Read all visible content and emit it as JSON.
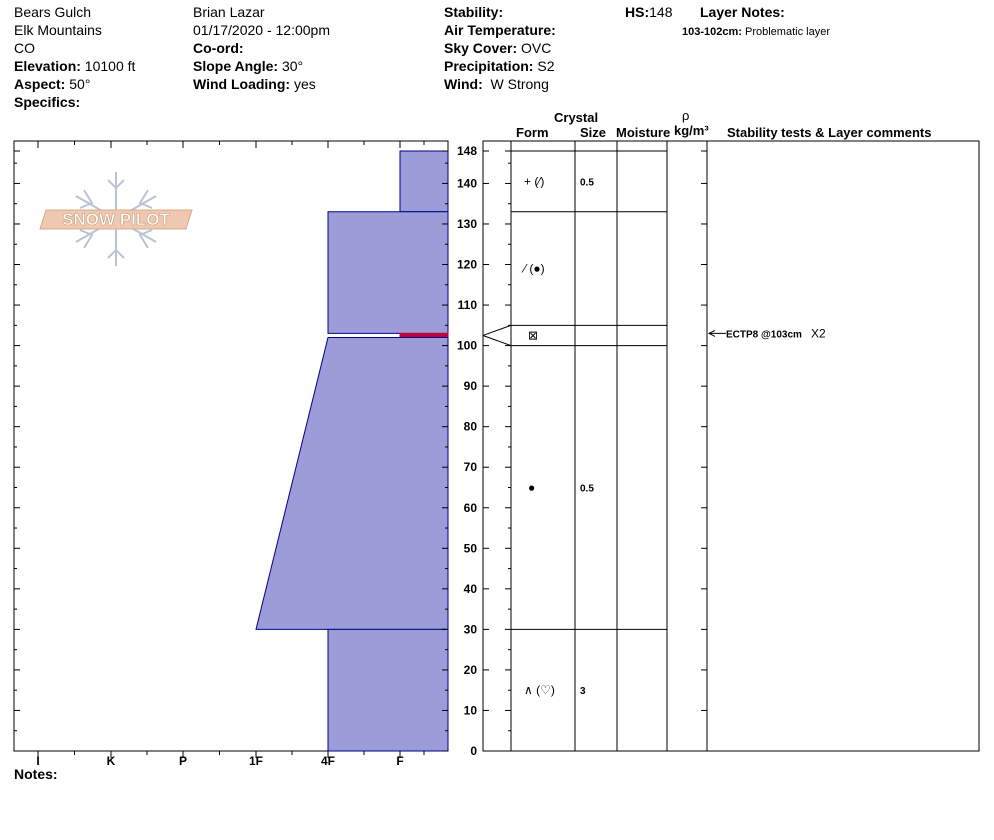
{
  "header": {
    "location": "Bears Gulch",
    "range": "Elk Mountains",
    "state": "CO",
    "elevation_label": "Elevation:",
    "elevation_value": "10100 ft",
    "aspect_label": "Aspect:",
    "aspect_value": "50°",
    "specifics_label": "Specifics:",
    "observer": "Brian Lazar",
    "datetime": "01/17/2020 - 12:00pm",
    "coord_label": "Co-ord:",
    "slope_label": "Slope Angle:",
    "slope_value": "30°",
    "wind_loading_label": "Wind Loading:",
    "wind_loading_value": "yes",
    "stability_label": "Stability:",
    "air_temp_label": "Air Temperature:",
    "sky_label": "Sky Cover:",
    "sky_value": "OVC",
    "precip_label": "Precipitation:",
    "precip_value": "S2",
    "wind_label": "Wind:",
    "wind_value": "W Strong",
    "hs_label": "HS:",
    "hs_value": "148",
    "layer_notes_label": "Layer Notes:",
    "layer_note_range": "103-102cm:",
    "layer_note_text": "Problematic layer"
  },
  "logo": {
    "text": "SNOW PILOT"
  },
  "columns": {
    "crystal": "Crystal",
    "form": "Form",
    "size": "Size",
    "moisture": "Moisture",
    "rho": "ρ",
    "density_unit": "kg/m³",
    "comments": "Stability tests & Layer comments"
  },
  "notes_label": "Notes:",
  "stability_test": {
    "label": "ECTP8 @103cm",
    "multiplier": "X2",
    "depth": 103
  },
  "colors": {
    "layer_fill": "#9c9cd8",
    "layer_stroke": "#00008b",
    "weak_layer": "#c0003c"
  },
  "chart_data": {
    "type": "area",
    "ylim": [
      0,
      148
    ],
    "ytick_values": [
      0,
      10,
      20,
      30,
      40,
      50,
      60,
      70,
      80,
      90,
      100,
      110,
      120,
      130,
      140,
      148
    ],
    "hardness_scale": [
      "I",
      "K",
      "P",
      "1F",
      "4F",
      "F"
    ],
    "layers": [
      {
        "top": 148,
        "bottom": 133,
        "hardness_top": "F",
        "hardness_bottom": "F",
        "form": "+ (⁄)",
        "size": "0.5"
      },
      {
        "top": 133,
        "bottom": 103,
        "hardness_top": "4F",
        "hardness_bottom": "4F",
        "form": "⁄ (●)",
        "size": ""
      },
      {
        "top": 103,
        "bottom": 102,
        "hardness_top": "F",
        "hardness_bottom": "F",
        "form": "⊠",
        "size": "",
        "weak": true
      },
      {
        "top": 102,
        "bottom": 30,
        "hardness_top": "4F",
        "hardness_bottom": "1F",
        "form": "●",
        "size": "0.5"
      },
      {
        "top": 30,
        "bottom": 0,
        "hardness_top": "4F",
        "hardness_bottom": "4F",
        "form": "∧ (♡)",
        "size": "3"
      }
    ],
    "form_boundaries": [
      148,
      133,
      105,
      100,
      30
    ]
  }
}
